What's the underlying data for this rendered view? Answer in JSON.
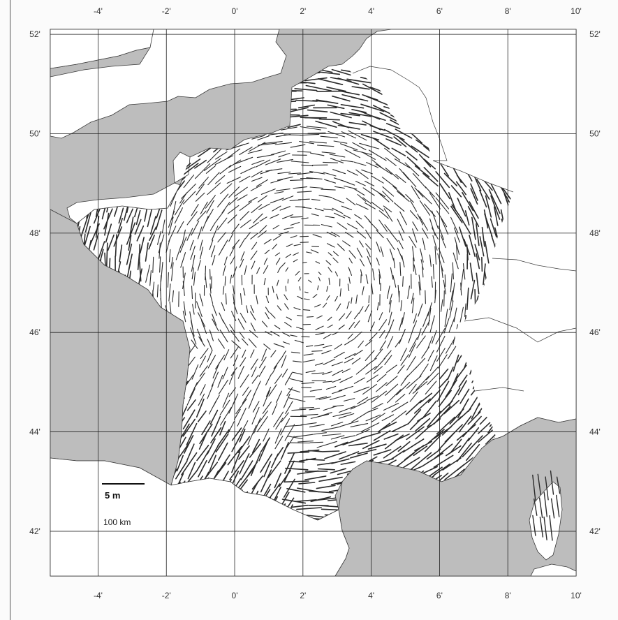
{
  "map": {
    "lon_labels": [
      "-4'",
      "-2'",
      "0'",
      "2'",
      "4'",
      "6'",
      "8'",
      "10'"
    ],
    "lat_labels": [
      "52'",
      "50'",
      "48'",
      "46'",
      "44'",
      "42'"
    ],
    "lon_values": [
      -4,
      -2,
      0,
      2,
      4,
      6,
      8,
      10
    ],
    "lat_values": [
      52,
      50,
      48,
      46,
      44,
      42
    ],
    "lon_range": [
      -5.4,
      10
    ],
    "lat_range": [
      41.1,
      52.1
    ],
    "colors": {
      "sea": "#bdbdbd",
      "land": "#ffffff",
      "coast": "#3a3a3a",
      "grid": "#222222",
      "vector": "#2a2a2a",
      "frame": "#222222"
    }
  },
  "scale": {
    "vector_label": "5 m",
    "distance_label": "100 km"
  }
}
